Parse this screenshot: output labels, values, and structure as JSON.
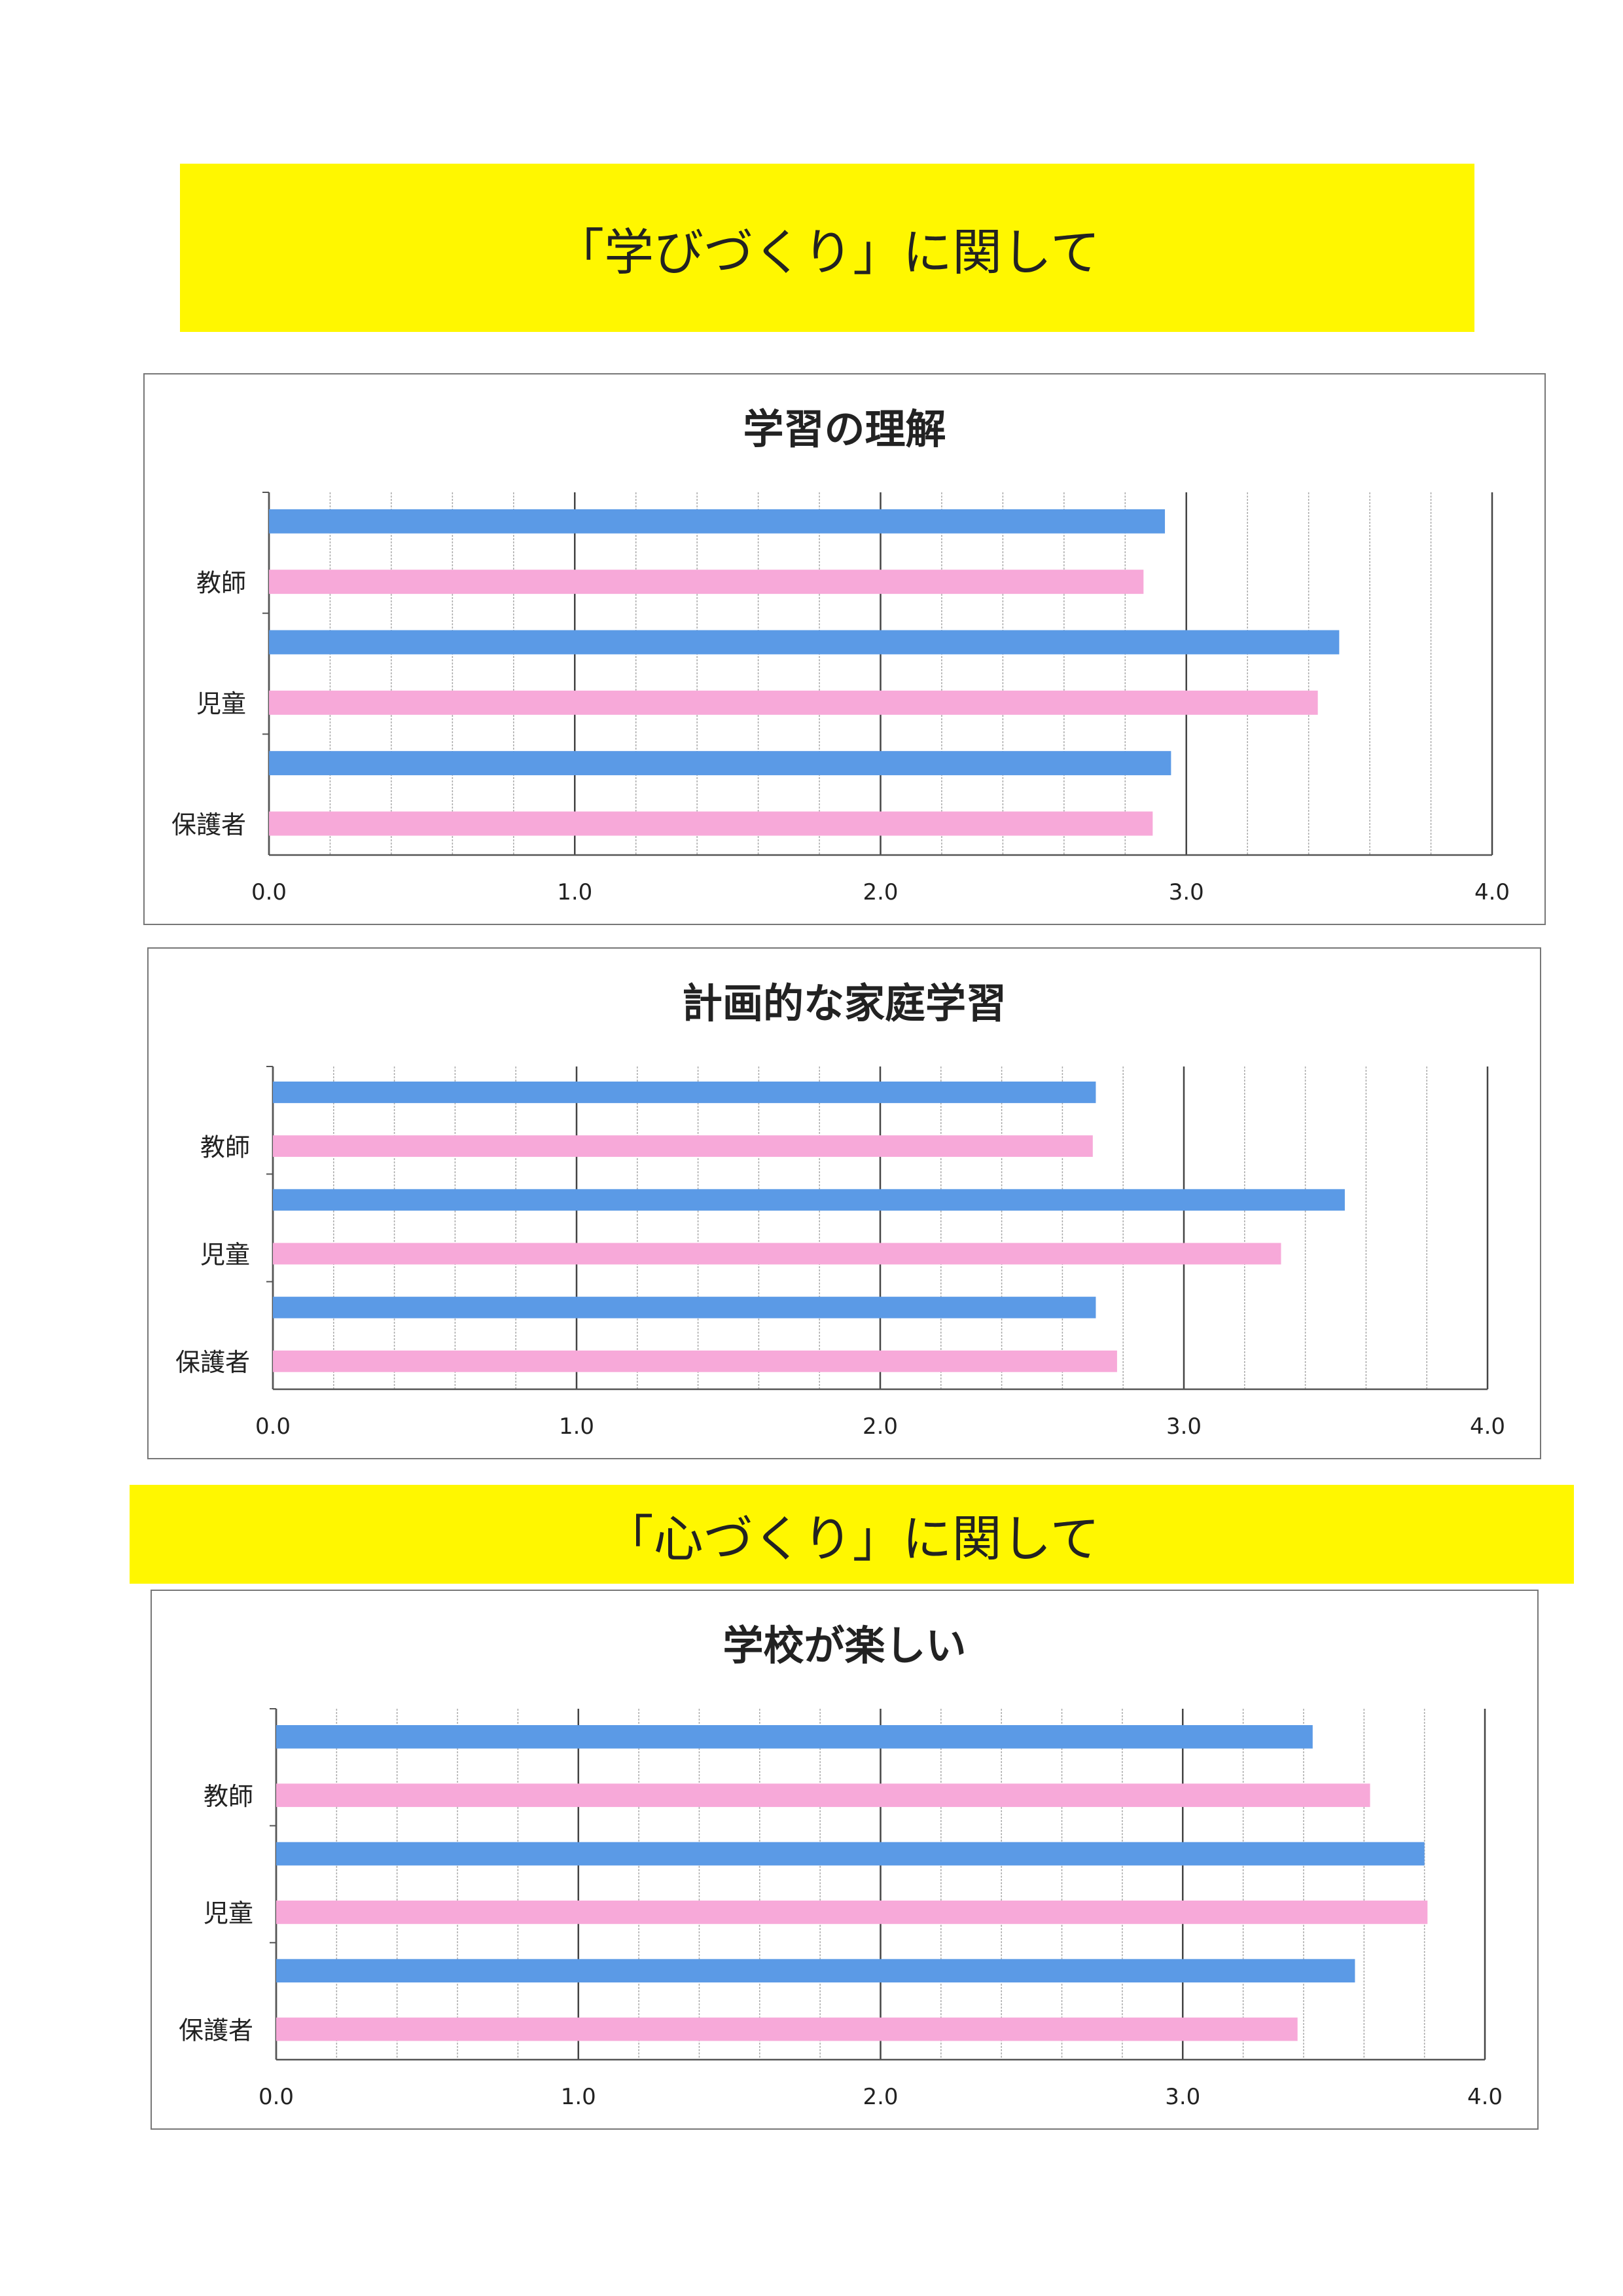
{
  "banners": [
    "「学びづくり」に関して",
    "「心づくり」に関して"
  ],
  "colors": {
    "series1": "#5b9ae6",
    "series2": "#f7a9d9",
    "banner": "#fff700"
  },
  "chart_data": [
    {
      "type": "bar",
      "orientation": "horizontal",
      "title": "学習の理解",
      "categories": [
        "教師",
        "児童",
        "保護者"
      ],
      "series": [
        {
          "values": [
            2.93,
            3.5,
            2.95
          ],
          "color": "#5b9ae6"
        },
        {
          "values": [
            2.86,
            3.43,
            2.89
          ],
          "color": "#f7a9d9"
        }
      ],
      "xlim": [
        0,
        4
      ],
      "ticks": [
        "0.0",
        "1.0",
        "2.0",
        "3.0",
        "4.0"
      ],
      "grid": true
    },
    {
      "type": "bar",
      "orientation": "horizontal",
      "title": "計画的な家庭学習",
      "categories": [
        "教師",
        "児童",
        "保護者"
      ],
      "series": [
        {
          "values": [
            2.71,
            3.53,
            2.71
          ],
          "color": "#5b9ae6"
        },
        {
          "values": [
            2.7,
            3.32,
            2.78
          ],
          "color": "#f7a9d9"
        }
      ],
      "xlim": [
        0,
        4
      ],
      "ticks": [
        "0.0",
        "1.0",
        "2.0",
        "3.0",
        "4.0"
      ],
      "grid": true
    },
    {
      "type": "bar",
      "orientation": "horizontal",
      "title": "学校が楽しい",
      "categories": [
        "教師",
        "児童",
        "保護者"
      ],
      "series": [
        {
          "values": [
            3.43,
            3.8,
            3.57
          ],
          "color": "#5b9ae6"
        },
        {
          "values": [
            3.62,
            3.81,
            3.38
          ],
          "color": "#f7a9d9"
        }
      ],
      "xlim": [
        0,
        4
      ],
      "ticks": [
        "0.0",
        "1.0",
        "2.0",
        "3.0",
        "4.0"
      ],
      "grid": true
    }
  ]
}
